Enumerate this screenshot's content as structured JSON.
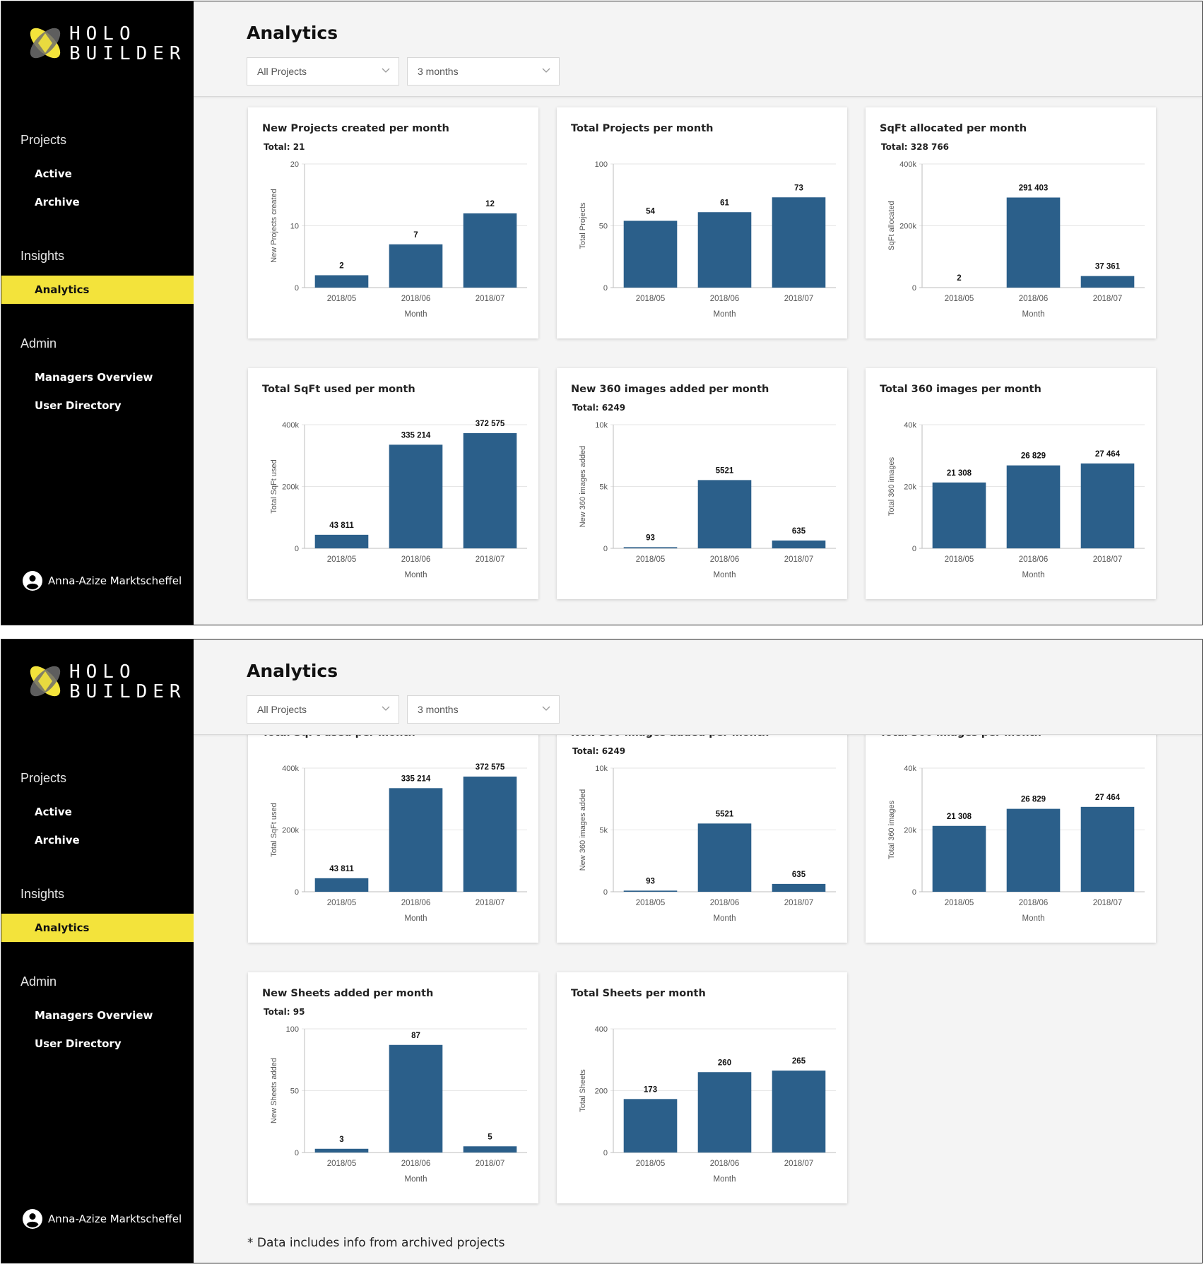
{
  "app": {
    "logo_line1": "HOLO",
    "logo_line2": "BUILDER",
    "page_title": "Analytics",
    "colors": {
      "sidebar": "#000000",
      "accent": "#f3e33b",
      "bar": "#2b5f8a"
    }
  },
  "sidebar": {
    "projects_heading": "Projects",
    "active": "Active",
    "archive": "Archive",
    "insights_heading": "Insights",
    "analytics": "Analytics",
    "admin_heading": "Admin",
    "managers": "Managers Overview",
    "user_directory": "User Directory",
    "user_name": "Anna-Azize Marktscheffel",
    "user_icon": "account-circle-icon"
  },
  "filters": {
    "project": "All Projects",
    "period": "3 months"
  },
  "footnote": "* Data includes info from archived projects",
  "chart_data": [
    {
      "type": "bar",
      "title": "New Projects created per month",
      "total": "Total: 21",
      "categories": [
        "2018/05",
        "2018/06",
        "2018/07"
      ],
      "values": [
        2,
        7,
        12
      ],
      "value_labels": [
        "2",
        "7",
        "12"
      ],
      "xlabel": "Month",
      "ylabel": "New Projects created",
      "ylim": [
        0,
        20
      ],
      "yticks": [
        0,
        10,
        20
      ],
      "ytick_labels": [
        "0",
        "10",
        "20"
      ],
      "grid": true
    },
    {
      "type": "bar",
      "title": "Total Projects per month",
      "categories": [
        "2018/05",
        "2018/06",
        "2018/07"
      ],
      "values": [
        54,
        61,
        73
      ],
      "value_labels": [
        "54",
        "61",
        "73"
      ],
      "xlabel": "Month",
      "ylabel": "Total Projects",
      "ylim": [
        0,
        100
      ],
      "yticks": [
        0,
        50,
        100
      ],
      "ytick_labels": [
        "0",
        "50",
        "100"
      ],
      "grid": true
    },
    {
      "type": "bar",
      "title": "SqFt allocated per month",
      "total": "Total: 328 766",
      "categories": [
        "2018/05",
        "2018/06",
        "2018/07"
      ],
      "values": [
        2,
        291403,
        37361
      ],
      "value_labels": [
        "2",
        "291 403",
        "37 361"
      ],
      "xlabel": "Month",
      "ylabel": "SqFt allocated",
      "ylim": [
        0,
        400000
      ],
      "yticks": [
        0,
        200000,
        400000
      ],
      "ytick_labels": [
        "0",
        "200k",
        "400k"
      ],
      "grid": true
    },
    {
      "type": "bar",
      "title": "Total SqFt used per month",
      "categories": [
        "2018/05",
        "2018/06",
        "2018/07"
      ],
      "values": [
        43811,
        335214,
        372575
      ],
      "value_labels": [
        "43 811",
        "335 214",
        "372 575"
      ],
      "xlabel": "Month",
      "ylabel": "Total SqFt used",
      "ylim": [
        0,
        400000
      ],
      "yticks": [
        0,
        200000,
        400000
      ],
      "ytick_labels": [
        "0",
        "200k",
        "400k"
      ],
      "grid": true
    },
    {
      "type": "bar",
      "title": "New 360 images added per month",
      "total": "Total: 6249",
      "categories": [
        "2018/05",
        "2018/06",
        "2018/07"
      ],
      "values": [
        93,
        5521,
        635
      ],
      "value_labels": [
        "93",
        "5521",
        "635"
      ],
      "xlabel": "Month",
      "ylabel": "New 360 images added",
      "ylim": [
        0,
        10000
      ],
      "yticks": [
        0,
        5000,
        10000
      ],
      "ytick_labels": [
        "0",
        "5k",
        "10k"
      ],
      "grid": true
    },
    {
      "type": "bar",
      "title": "Total 360 images per month",
      "categories": [
        "2018/05",
        "2018/06",
        "2018/07"
      ],
      "values": [
        21308,
        26829,
        27464
      ],
      "value_labels": [
        "21 308",
        "26 829",
        "27 464"
      ],
      "xlabel": "Month",
      "ylabel": "Total 360 images",
      "ylim": [
        0,
        40000
      ],
      "yticks": [
        0,
        20000,
        40000
      ],
      "ytick_labels": [
        "0",
        "20k",
        "40k"
      ],
      "grid": true
    },
    {
      "type": "bar",
      "title": "New Sheets added per month",
      "total": "Total: 95",
      "categories": [
        "2018/05",
        "2018/06",
        "2018/07"
      ],
      "values": [
        3,
        87,
        5
      ],
      "value_labels": [
        "3",
        "87",
        "5"
      ],
      "xlabel": "Month",
      "ylabel": "New Sheets added",
      "ylim": [
        0,
        100
      ],
      "yticks": [
        0,
        50,
        100
      ],
      "ytick_labels": [
        "0",
        "50",
        "100"
      ],
      "grid": true
    },
    {
      "type": "bar",
      "title": "Total Sheets per month",
      "categories": [
        "2018/05",
        "2018/06",
        "2018/07"
      ],
      "values": [
        173,
        260,
        265
      ],
      "value_labels": [
        "173",
        "260",
        "265"
      ],
      "xlabel": "Month",
      "ylabel": "Total Sheets",
      "ylim": [
        0,
        400
      ],
      "yticks": [
        0,
        200,
        400
      ],
      "ytick_labels": [
        "0",
        "200",
        "400"
      ],
      "grid": true
    }
  ]
}
